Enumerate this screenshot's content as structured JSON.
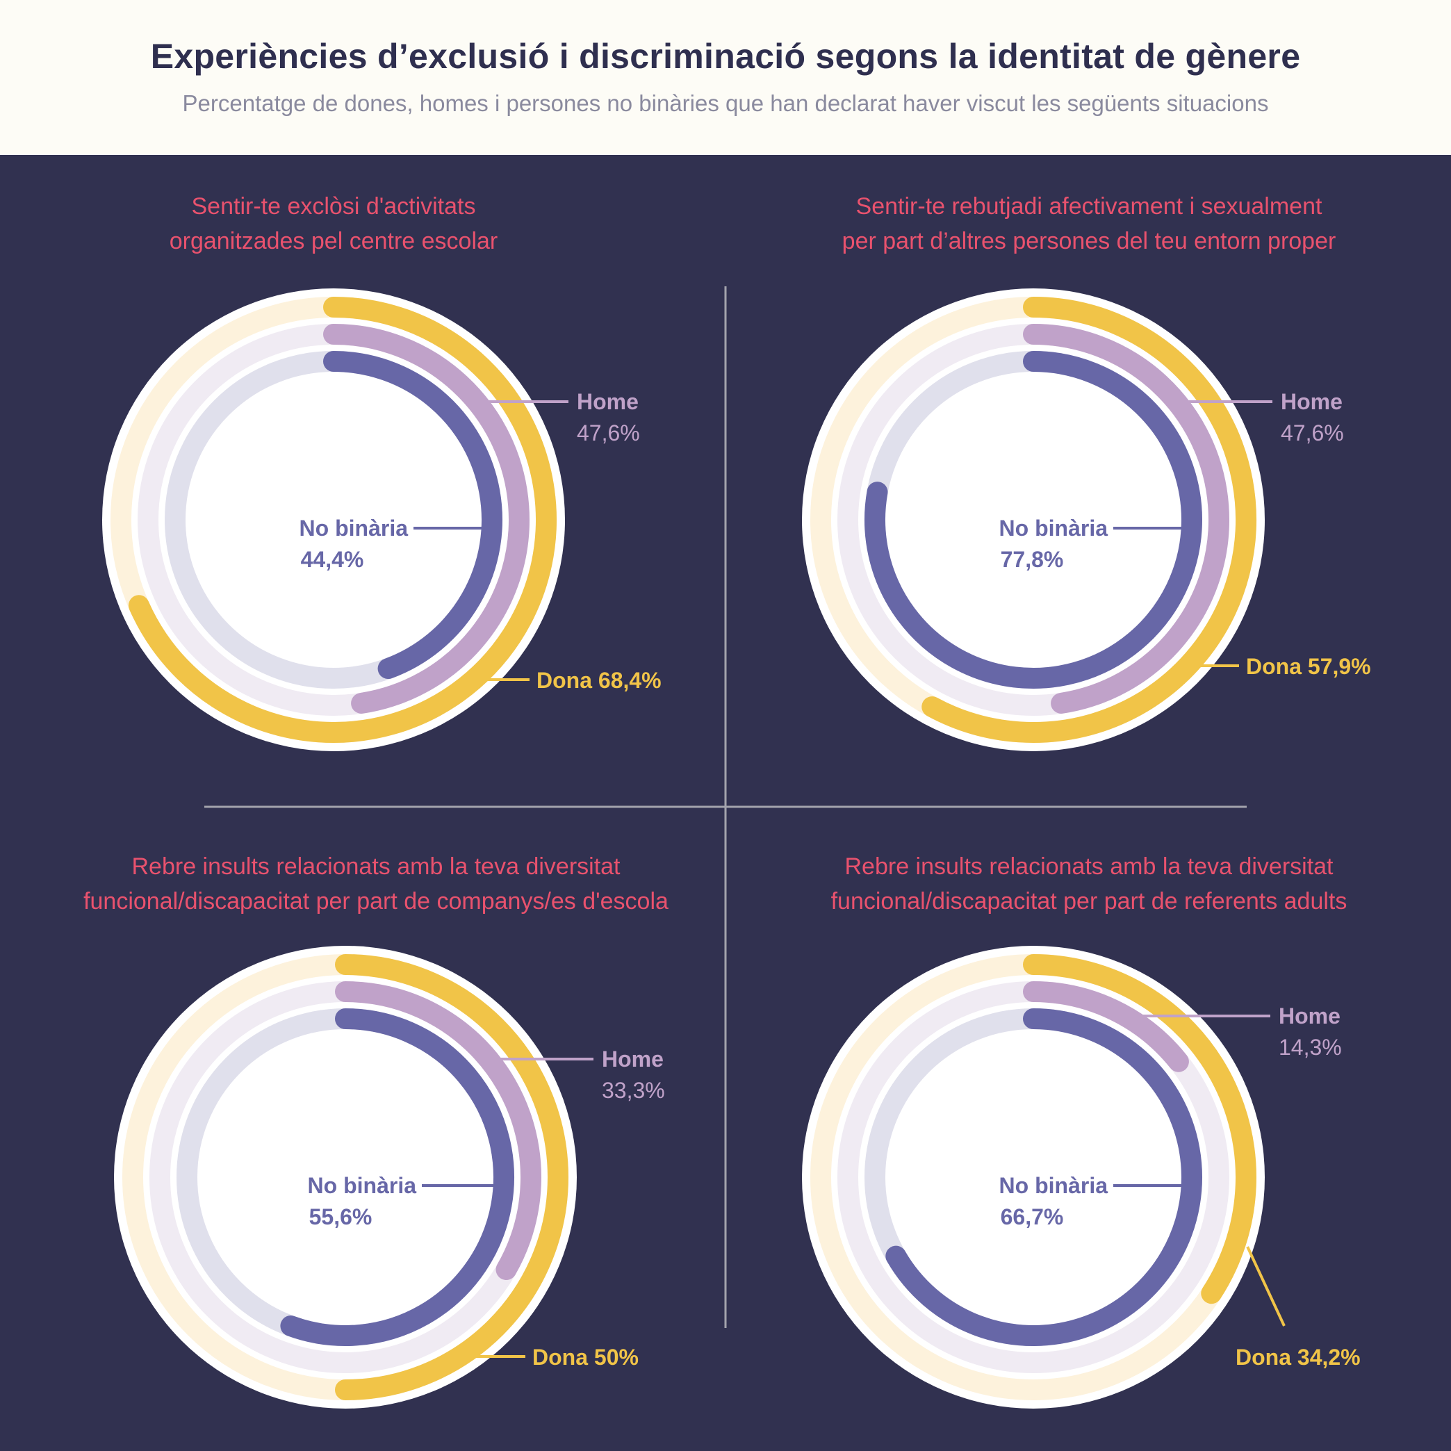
{
  "header": {
    "title": "Experiències d’exclusió i discriminació segons la identitat de gènere",
    "subtitle": "Percentatge de dones, homes i persones no binàries que han declarat haver viscut les següents situacions"
  },
  "colors": {
    "background": "#313150",
    "header_bg": "#fdfcf6",
    "panel_title": "#e9526e",
    "dona": "#f1c448",
    "dona_track": "#fdf2dc",
    "home": "#c0a2c9",
    "home_track": "#f0ebf3",
    "no_binaria": "#6767a7",
    "no_binaria_track": "#e0e0ec",
    "divider": "#a3a3ad"
  },
  "chart_data": [
    {
      "type": "radial-bar",
      "title": "Sentir-te exclòsi d'activitats organitzades pel centre escolar",
      "title_lines": [
        "Sentir-te exclòsi d'activitats",
        "organitzades pel centre escolar"
      ],
      "unit": "%",
      "series": [
        {
          "name": "Dona",
          "value": 68.4,
          "label": "Dona 68,4%"
        },
        {
          "name": "Home",
          "value": 47.6,
          "label_name": "Home",
          "label_value": "47,6%"
        },
        {
          "name": "No binària",
          "value": 44.4,
          "label_name": "No binària",
          "label_value": "44,4%"
        }
      ]
    },
    {
      "type": "radial-bar",
      "title": "Sentir-te rebutjadi afectivament i sexualment per part d’altres persones del teu entorn proper",
      "title_lines": [
        "Sentir-te rebutjadi afectivament i sexualment",
        "per part d’altres persones del teu entorn proper"
      ],
      "unit": "%",
      "series": [
        {
          "name": "Dona",
          "value": 57.9,
          "label": "Dona 57,9%"
        },
        {
          "name": "Home",
          "value": 47.6,
          "label_name": "Home",
          "label_value": "47,6%"
        },
        {
          "name": "No binària",
          "value": 77.8,
          "label_name": "No binària",
          "label_value": "77,8%"
        }
      ]
    },
    {
      "type": "radial-bar",
      "title": "Rebre insults relacionats amb la teva diversitat funcional/discapacitat per part de companys/es d'escola",
      "title_lines": [
        "Rebre insults relacionats amb la teva diversitat",
        "funcional/discapacitat per part de companys/es d'escola"
      ],
      "unit": "%",
      "series": [
        {
          "name": "Dona",
          "value": 50,
          "label": "Dona 50%"
        },
        {
          "name": "Home",
          "value": 33.3,
          "label_name": "Home",
          "label_value": "33,3%"
        },
        {
          "name": "No binària",
          "value": 55.6,
          "label_name": "No binària",
          "label_value": "55,6%"
        }
      ]
    },
    {
      "type": "radial-bar",
      "title": "Rebre insults relacionats amb la teva diversitat funcional/discapacitat per part de referents adults",
      "title_lines": [
        "Rebre insults relacionats amb la teva diversitat",
        "funcional/discapacitat per part de referents adults"
      ],
      "unit": "%",
      "series": [
        {
          "name": "Dona",
          "value": 34.2,
          "label": "Dona 34,2%"
        },
        {
          "name": "Home",
          "value": 14.3,
          "label_name": "Home",
          "label_value": "14,3%"
        },
        {
          "name": "No binària",
          "value": 66.7,
          "label_name": "No binària",
          "label_value": "66,7%"
        }
      ]
    }
  ]
}
